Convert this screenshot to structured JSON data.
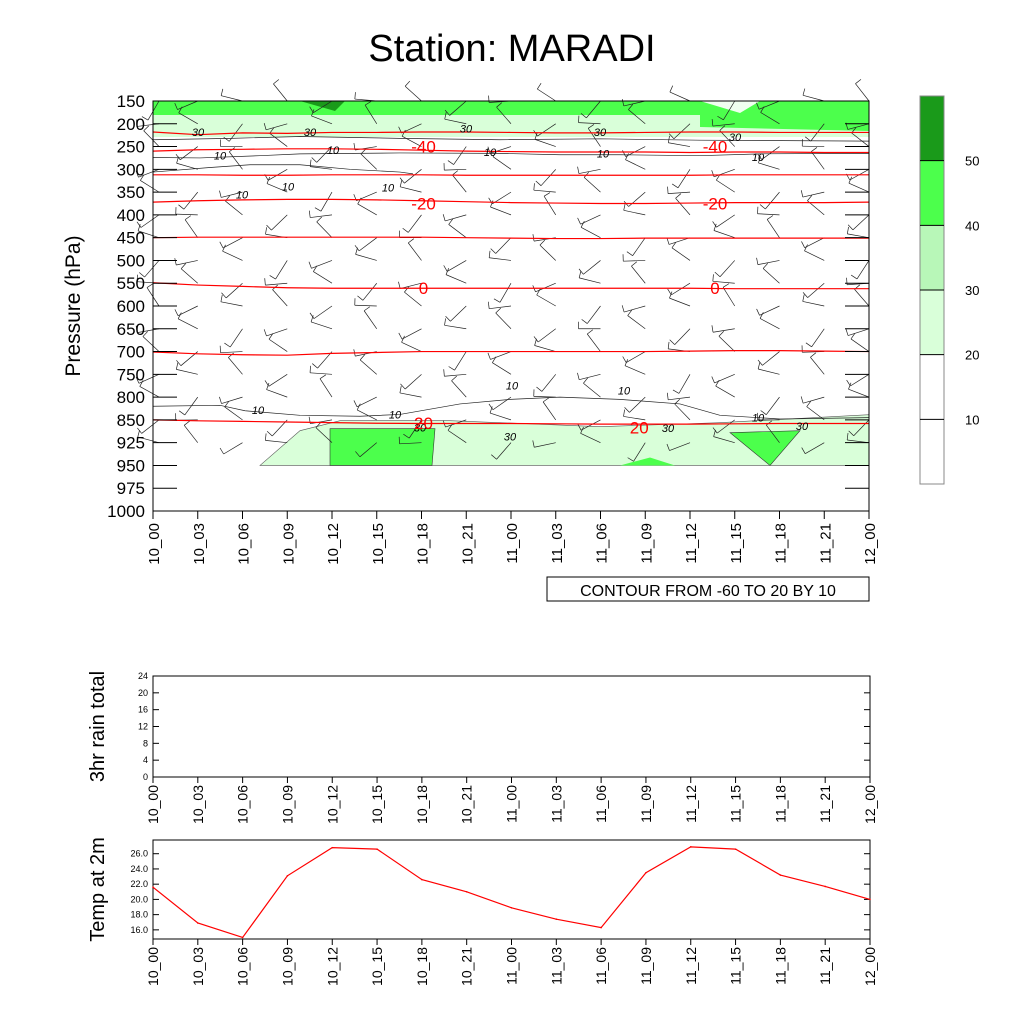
{
  "title": "Station: MARADI",
  "colors": {
    "temp_line": "#ff0000",
    "shade_20_30": "#d9ffd9",
    "shade_30_40": "#b8f7b8",
    "shade_40_50": "#4cff4c",
    "shade_50_60": "#1a9a1a"
  },
  "time_labels": [
    "10_00",
    "10_03",
    "10_06",
    "10_09",
    "10_12",
    "10_15",
    "10_18",
    "10_21",
    "11_00",
    "11_03",
    "11_06",
    "11_09",
    "11_12",
    "11_15",
    "11_18",
    "11_21",
    "12_00"
  ],
  "chart_data": [
    {
      "type": "heatmap",
      "name": "pressure-time-cross-section",
      "ylabel": "Pressure (hPa)",
      "xlabel": "",
      "pressure_levels": [
        150,
        200,
        250,
        300,
        350,
        400,
        450,
        500,
        550,
        600,
        650,
        700,
        750,
        800,
        850,
        925,
        950,
        975,
        1000
      ],
      "ylim": [
        1000,
        150
      ],
      "contour_info": "CONTOUR FROM -60 TO 20 BY 10",
      "temperature_contour_labels": [
        {
          "value": "-40",
          "time": "10_18",
          "pressure": 250
        },
        {
          "value": "-40",
          "time": "11_12",
          "pressure": 250
        },
        {
          "value": "-20",
          "time": "10_18",
          "pressure": 375
        },
        {
          "value": "-20",
          "time": "11_12",
          "pressure": 375
        },
        {
          "value": "0",
          "time": "10_18",
          "pressure": 560
        },
        {
          "value": "0",
          "time": "11_12",
          "pressure": 560
        },
        {
          "value": "20",
          "time": "10_18",
          "pressure": 860
        },
        {
          "value": "20",
          "time": "11_09",
          "pressure": 875
        }
      ],
      "humidity_contour_labels": [
        "30",
        "30",
        "30",
        "30",
        "30",
        "10",
        "10",
        "10",
        "10",
        "10",
        "10",
        "10",
        "10",
        "10",
        "10",
        "30",
        "30",
        "30",
        "30"
      ],
      "colorbar": {
        "labels": [
          "10",
          "20",
          "30",
          "40",
          "50"
        ],
        "bins": [
          "<10",
          "10-20",
          "20-30",
          "30-40",
          "40-50",
          ">50"
        ]
      }
    },
    {
      "type": "line",
      "name": "3hr-rain-total",
      "ylabel": "3hr rain total",
      "ylim": [
        0,
        24
      ],
      "yticks": [
        "0",
        "4",
        "8",
        "12",
        "16",
        "20",
        "24"
      ],
      "values": [
        0,
        0,
        0,
        0,
        0,
        0,
        0,
        0,
        0,
        0,
        0,
        0,
        0,
        0,
        0,
        0,
        0
      ]
    },
    {
      "type": "line",
      "name": "temp-at-2m",
      "ylabel": "Temp at 2m",
      "ylim": [
        14.8,
        27.8
      ],
      "yticks": [
        "16.0",
        "18.0",
        "20.0",
        "22.0",
        "24.0",
        "26.0"
      ],
      "values": [
        21.6,
        16.9,
        15.0,
        23.1,
        26.8,
        26.6,
        22.6,
        21.0,
        18.9,
        17.4,
        16.3,
        23.5,
        26.9,
        26.6,
        23.2,
        21.7,
        20.0
      ]
    }
  ]
}
